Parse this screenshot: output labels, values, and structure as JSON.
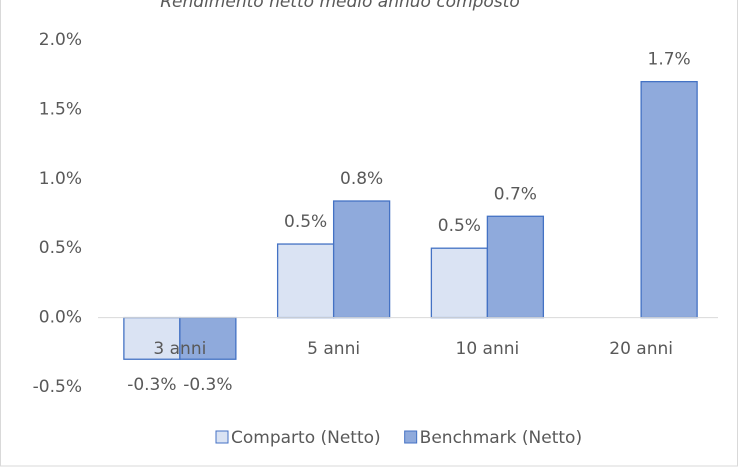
{
  "chart_data": {
    "type": "bar",
    "title": "Rendimento netto medio annuo composto",
    "categories": [
      "3 anni",
      "5 anni",
      "10 anni",
      "20 anni"
    ],
    "series": [
      {
        "name": "Comparto (Netto)",
        "color": "#dae3f3",
        "values": [
          -0.3,
          0.53,
          0.5,
          null
        ],
        "value_labels": [
          "-0.3%",
          "0.5%",
          "0.5%",
          null
        ]
      },
      {
        "name": "Benchmark (Netto)",
        "color": "#8faadc",
        "values": [
          -0.3,
          0.84,
          0.73,
          1.7
        ],
        "value_labels": [
          "-0.3%",
          "0.8%",
          "0.7%",
          "1.7%"
        ]
      }
    ],
    "ylim": [
      -0.5,
      2.0
    ],
    "yticks": [
      {
        "value": -0.5,
        "label": "-0.5%"
      },
      {
        "value": 0.0,
        "label": "0.0%"
      },
      {
        "value": 0.5,
        "label": "0.5%"
      },
      {
        "value": 1.0,
        "label": "1.0%"
      },
      {
        "value": 1.5,
        "label": "1.5%"
      },
      {
        "value": 2.0,
        "label": "2.0%"
      }
    ],
    "grid": false
  }
}
